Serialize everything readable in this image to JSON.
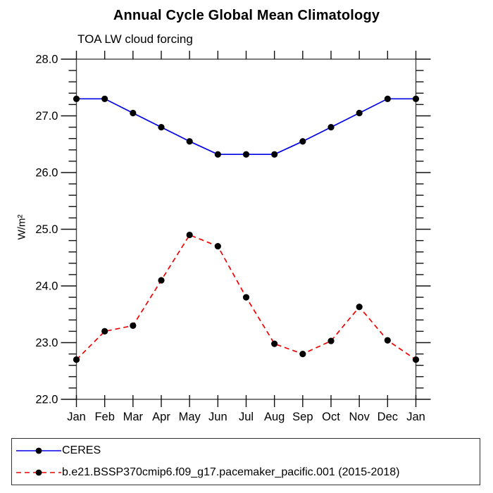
{
  "chart_data": {
    "type": "line",
    "title": "Annual Cycle Global Mean Climatology",
    "subtitle": "TOA LW cloud forcing",
    "ylabel": "W/m²",
    "xlabel": "",
    "categories": [
      "Jan",
      "Feb",
      "Mar",
      "Apr",
      "May",
      "Jun",
      "Jul",
      "Aug",
      "Sep",
      "Oct",
      "Nov",
      "Dec",
      "Jan"
    ],
    "series": [
      {
        "name": "CERES",
        "color": "#0000e6",
        "line_style": "solid",
        "marker": "circle",
        "marker_color": "#000000",
        "values": [
          27.3,
          27.3,
          27.05,
          26.8,
          26.55,
          26.32,
          26.32,
          26.32,
          26.55,
          26.8,
          27.05,
          27.3,
          27.3
        ]
      },
      {
        "name": "b.e21.BSSP370cmip6.f09_g17.pacemaker_pacific.001 (2015-2018)",
        "color": "#f20000",
        "line_style": "dashed",
        "marker": "circle",
        "marker_color": "#000000",
        "values": [
          22.7,
          23.2,
          23.3,
          24.1,
          24.9,
          24.7,
          23.8,
          22.98,
          22.8,
          23.03,
          23.63,
          23.04,
          22.7
        ]
      }
    ],
    "ylim": [
      22.0,
      28.0
    ],
    "y_major_step": 1.0,
    "y_minor_step": 0.2,
    "y_tick_labels": [
      "22.0",
      "23.0",
      "24.0",
      "25.0",
      "26.0",
      "27.0",
      "28.0"
    ],
    "grid": false,
    "legend_position": "bottom-box",
    "axis_color": "#444444",
    "tick_color": "#111111"
  }
}
